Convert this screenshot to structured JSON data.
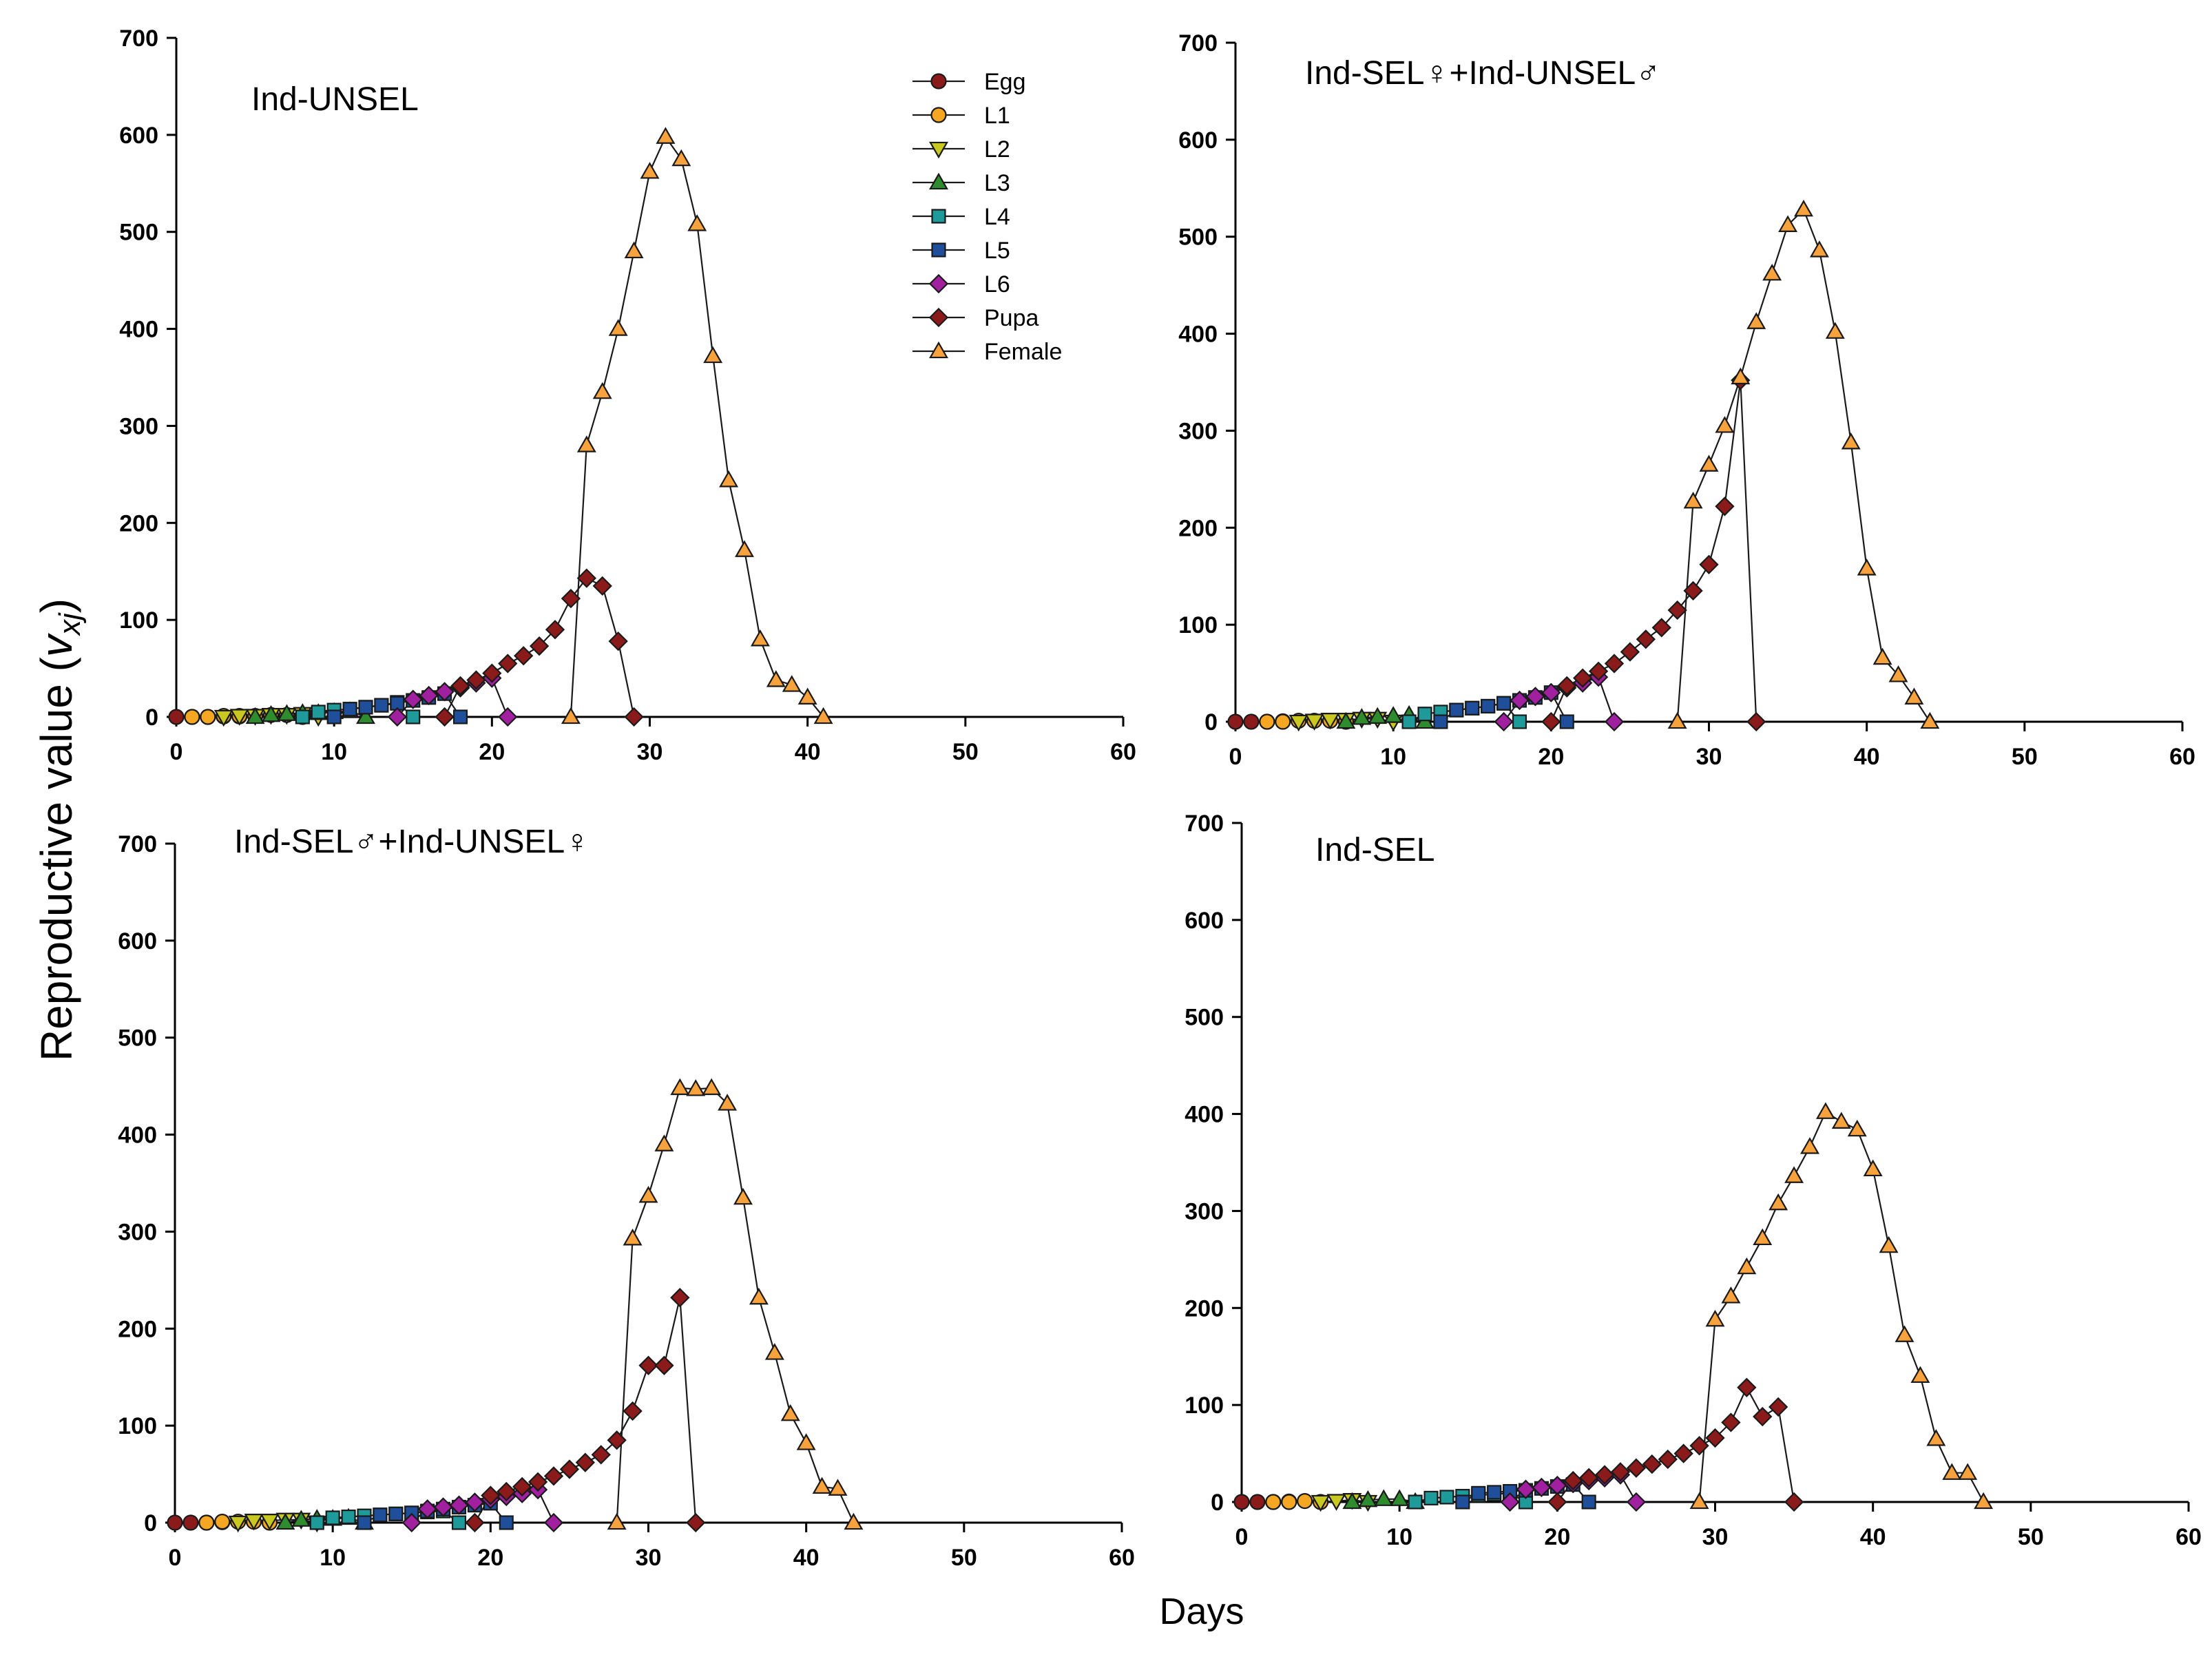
{
  "figure": {
    "ylabel": "Reproductive value (",
    "ylabel_symbol": "v",
    "ylabel_subscript": "xj",
    "ylabel_close": ")",
    "xlabel": "Days"
  },
  "styles": {
    "Egg": {
      "marker": "circle",
      "color": "#8B1A1A"
    },
    "L1": {
      "marker": "circle",
      "color": "#F5A623"
    },
    "L2": {
      "marker": "tri-down",
      "color": "#C8C820"
    },
    "L3": {
      "marker": "tri-up",
      "color": "#2E8B2E"
    },
    "L4": {
      "marker": "square",
      "color": "#1E9A9A"
    },
    "L5": {
      "marker": "square",
      "color": "#1F4E9A"
    },
    "L6": {
      "marker": "diamond",
      "color": "#A020A0"
    },
    "Pupa": {
      "marker": "diamond",
      "color": "#8B1A1A"
    },
    "Female": {
      "marker": "tri-up",
      "color": "#F7A23C"
    }
  },
  "legend": {
    "position": "top-right of first panel",
    "entries": [
      "Egg",
      "L1",
      "L2",
      "L3",
      "L4",
      "L5",
      "L6",
      "Pupa",
      "Female"
    ]
  },
  "chart_data": [
    {
      "type": "line",
      "title": "Ind-UNSEL",
      "xlabel": "Days",
      "ylabel": "Reproductive value (vxj)",
      "xlim": [
        0,
        60
      ],
      "ylim": [
        0,
        700
      ],
      "xticks": [
        0,
        10,
        20,
        30,
        40,
        50,
        60
      ],
      "yticks": [
        0,
        100,
        200,
        300,
        400,
        500,
        600,
        700
      ],
      "series": [
        {
          "name": "Egg",
          "x": [
            0,
            1,
            2,
            3,
            4
          ],
          "y": [
            0,
            0,
            0,
            0.5,
            0.5
          ]
        },
        {
          "name": "L1",
          "x": [
            1,
            2,
            3,
            4,
            5,
            6,
            7,
            8
          ],
          "y": [
            0,
            0,
            1,
            1,
            1,
            2,
            2,
            0
          ]
        },
        {
          "name": "L2",
          "x": [
            3,
            4,
            5,
            6,
            7,
            8,
            9
          ],
          "y": [
            0,
            1,
            1,
            2,
            2,
            3,
            0
          ]
        },
        {
          "name": "L3",
          "x": [
            5,
            6,
            7,
            8,
            9,
            10,
            11,
            12
          ],
          "y": [
            0,
            2,
            3,
            4,
            4,
            5,
            6,
            0
          ]
        },
        {
          "name": "L4",
          "x": [
            8,
            9,
            10,
            11,
            12,
            13,
            14,
            15
          ],
          "y": [
            0,
            5,
            7,
            8,
            10,
            12,
            15,
            0
          ]
        },
        {
          "name": "L5",
          "x": [
            10,
            11,
            12,
            13,
            14,
            15,
            16,
            17,
            18
          ],
          "y": [
            0,
            8,
            10,
            12,
            14,
            17,
            20,
            24,
            0
          ]
        },
        {
          "name": "L6",
          "x": [
            14,
            15,
            16,
            17,
            18,
            19,
            20,
            21
          ],
          "y": [
            0,
            18,
            22,
            26,
            30,
            35,
            40,
            0
          ]
        },
        {
          "name": "Pupa",
          "x": [
            17,
            18,
            19,
            20,
            21,
            22,
            23,
            24,
            25,
            26,
            27,
            28,
            29
          ],
          "y": [
            0,
            32,
            38,
            45,
            55,
            63,
            73,
            90,
            122,
            143,
            135,
            78,
            0
          ]
        },
        {
          "name": "Female",
          "x": [
            25,
            26,
            27,
            28,
            29,
            30,
            31,
            32,
            33,
            34,
            35,
            36,
            37,
            38,
            39,
            40,
            41
          ],
          "y": [
            0,
            280,
            335,
            400,
            480,
            562,
            598,
            575,
            508,
            372,
            244,
            172,
            80,
            38,
            33,
            20,
            0
          ]
        }
      ]
    },
    {
      "type": "line",
      "title": "Ind-SEL♀+Ind-UNSEL♂",
      "xlabel": "Days",
      "ylabel": "Reproductive value (vxj)",
      "xlim": [
        0,
        60
      ],
      "ylim": [
        0,
        700
      ],
      "xticks": [
        0,
        10,
        20,
        30,
        40,
        50,
        60
      ],
      "yticks": [
        0,
        100,
        200,
        300,
        400,
        500,
        600,
        700
      ],
      "series": [
        {
          "name": "Egg",
          "x": [
            0,
            1,
            2,
            3
          ],
          "y": [
            0,
            0,
            0,
            0.5
          ]
        },
        {
          "name": "L1",
          "x": [
            2,
            3,
            4,
            5,
            6,
            7
          ],
          "y": [
            0,
            0,
            1,
            1,
            1,
            0
          ]
        },
        {
          "name": "L2",
          "x": [
            4,
            5,
            6,
            7,
            8,
            9,
            10
          ],
          "y": [
            0,
            1,
            2,
            2,
            3,
            3,
            0
          ]
        },
        {
          "name": "L3",
          "x": [
            7,
            8,
            9,
            10,
            11,
            12
          ],
          "y": [
            0,
            4,
            5,
            6,
            7,
            0
          ]
        },
        {
          "name": "L4",
          "x": [
            11,
            12,
            13,
            14,
            15,
            16,
            17,
            18
          ],
          "y": [
            0,
            8,
            10,
            12,
            14,
            16,
            19,
            0
          ]
        },
        {
          "name": "L5",
          "x": [
            13,
            14,
            15,
            16,
            17,
            18,
            19,
            20,
            21
          ],
          "y": [
            0,
            12,
            14,
            16,
            19,
            22,
            25,
            30,
            0
          ]
        },
        {
          "name": "L6",
          "x": [
            17,
            18,
            19,
            20,
            21,
            22,
            23,
            24
          ],
          "y": [
            0,
            22,
            26,
            30,
            35,
            40,
            46,
            0
          ]
        },
        {
          "name": "Pupa",
          "x": [
            20,
            21,
            22,
            23,
            24,
            25,
            26,
            27,
            28,
            29,
            30,
            31,
            32,
            33
          ],
          "y": [
            0,
            37,
            45,
            52,
            60,
            72,
            85,
            97,
            115,
            135,
            162,
            222,
            352,
            0
          ]
        },
        {
          "name": "Female",
          "x": [
            28,
            29,
            30,
            31,
            32,
            33,
            34,
            35,
            36,
            37,
            38,
            39,
            40,
            41,
            42,
            43,
            44
          ],
          "y": [
            0,
            227,
            265,
            305,
            355,
            412,
            462,
            512,
            528,
            486,
            402,
            288,
            158,
            66,
            48,
            25,
            0
          ]
        }
      ]
    },
    {
      "type": "line",
      "title": "Ind-SEL♂+Ind-UNSEL♀",
      "xlabel": "Days",
      "ylabel": "Reproductive value (vxj)",
      "xlim": [
        0,
        60
      ],
      "ylim": [
        0,
        700
      ],
      "xticks": [
        0,
        10,
        20,
        30,
        40,
        50,
        60
      ],
      "yticks": [
        0,
        100,
        200,
        300,
        400,
        500,
        600,
        700
      ],
      "series": [
        {
          "name": "Egg",
          "x": [
            0,
            1,
            2,
            3
          ],
          "y": [
            0,
            0,
            0,
            0.5
          ]
        },
        {
          "name": "L1",
          "x": [
            2,
            3,
            4,
            5,
            6
          ],
          "y": [
            0,
            1,
            1,
            1,
            0
          ]
        },
        {
          "name": "L2",
          "x": [
            4,
            5,
            6,
            7,
            8,
            9
          ],
          "y": [
            0,
            2,
            2,
            3,
            3,
            0
          ]
        },
        {
          "name": "L3",
          "x": [
            7,
            8,
            9,
            10,
            11,
            12
          ],
          "y": [
            0,
            3,
            4,
            4,
            5,
            0
          ]
        },
        {
          "name": "L4",
          "x": [
            9,
            10,
            11,
            12,
            13,
            14,
            15,
            16,
            17,
            18
          ],
          "y": [
            0,
            5,
            6,
            7,
            8,
            9,
            10,
            11,
            12,
            0
          ]
        },
        {
          "name": "L5",
          "x": [
            12,
            13,
            14,
            15,
            16,
            17,
            18,
            19,
            20,
            21
          ],
          "y": [
            0,
            8,
            9,
            10,
            12,
            14,
            16,
            18,
            20,
            0
          ]
        },
        {
          "name": "L6",
          "x": [
            15,
            16,
            17,
            18,
            19,
            20,
            21,
            22,
            23,
            24
          ],
          "y": [
            0,
            14,
            16,
            18,
            21,
            24,
            27,
            30,
            34,
            0
          ]
        },
        {
          "name": "Pupa",
          "x": [
            19,
            20,
            21,
            22,
            23,
            24,
            25,
            26,
            27,
            28,
            29,
            30,
            31,
            32,
            33
          ],
          "y": [
            0,
            28,
            32,
            37,
            42,
            48,
            55,
            62,
            70,
            85,
            115,
            162,
            162,
            232,
            0
          ]
        },
        {
          "name": "Female",
          "x": [
            28,
            29,
            30,
            31,
            32,
            33,
            34,
            35,
            36,
            37,
            38,
            39,
            40,
            41,
            42,
            43
          ],
          "y": [
            0,
            293,
            337,
            390,
            448,
            447,
            448,
            432,
            335,
            232,
            175,
            112,
            82,
            37,
            35,
            0
          ]
        }
      ]
    },
    {
      "type": "line",
      "title": "Ind-SEL",
      "xlabel": "Days",
      "ylabel": "Reproductive value (vxj)",
      "xlim": [
        0,
        60
      ],
      "ylim": [
        0,
        700
      ],
      "xticks": [
        0,
        10,
        20,
        30,
        40,
        50,
        60
      ],
      "yticks": [
        0,
        100,
        200,
        300,
        400,
        500,
        600,
        700
      ],
      "series": [
        {
          "name": "Egg",
          "x": [
            0,
            1,
            2,
            3
          ],
          "y": [
            0,
            0,
            0,
            0.5
          ]
        },
        {
          "name": "L1",
          "x": [
            2,
            3,
            4,
            5
          ],
          "y": [
            0,
            0,
            1,
            0
          ]
        },
        {
          "name": "L2",
          "x": [
            5,
            6,
            7,
            8
          ],
          "y": [
            0,
            1,
            2,
            0
          ]
        },
        {
          "name": "L3",
          "x": [
            7,
            8,
            9,
            10,
            11
          ],
          "y": [
            0,
            2,
            3,
            3,
            0
          ]
        },
        {
          "name": "L4",
          "x": [
            11,
            12,
            13,
            14,
            15,
            16,
            17,
            18
          ],
          "y": [
            0,
            4,
            5,
            6,
            7,
            8,
            9,
            0
          ]
        },
        {
          "name": "L5",
          "x": [
            14,
            15,
            16,
            17,
            18,
            19,
            20,
            21,
            22
          ],
          "y": [
            0,
            9,
            10,
            11,
            12,
            14,
            16,
            18,
            0
          ]
        },
        {
          "name": "L6",
          "x": [
            17,
            18,
            19,
            20,
            21,
            22,
            23,
            24,
            25
          ],
          "y": [
            0,
            13,
            15,
            17,
            19,
            22,
            25,
            28,
            0
          ]
        },
        {
          "name": "Pupa",
          "x": [
            20,
            21,
            22,
            23,
            24,
            25,
            26,
            27,
            28,
            29,
            30,
            31,
            32,
            33,
            34,
            35
          ],
          "y": [
            0,
            22,
            25,
            28,
            31,
            35,
            39,
            44,
            50,
            58,
            66,
            82,
            118,
            88,
            98,
            0
          ]
        },
        {
          "name": "Female",
          "x": [
            29,
            30,
            31,
            32,
            33,
            34,
            35,
            36,
            37,
            38,
            39,
            40,
            41,
            42,
            43,
            44,
            45,
            46,
            47
          ],
          "y": [
            0,
            188,
            212,
            242,
            272,
            308,
            336,
            366,
            402,
            392,
            384,
            343,
            264,
            172,
            130,
            65,
            30,
            30,
            0
          ]
        }
      ]
    }
  ]
}
